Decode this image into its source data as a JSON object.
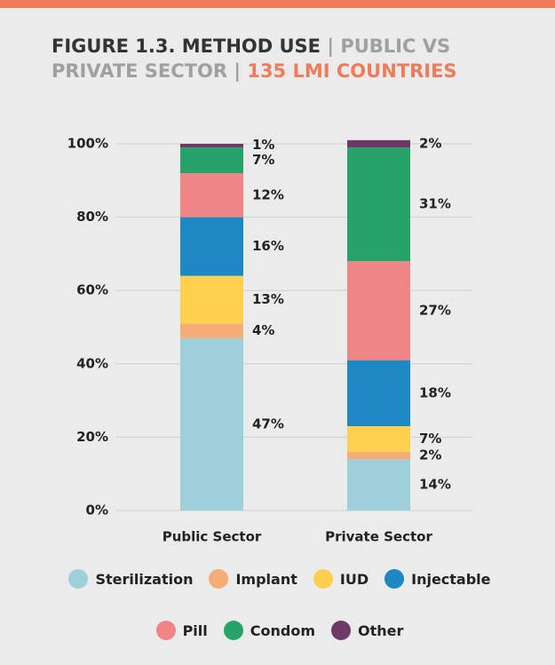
{
  "chart_data": {
    "type": "stacked_bar",
    "title": "FIGURE 1.3. METHOD USE",
    "subtitle": "| PUBLIC VS PRIVATE SECTOR |",
    "note": "135 LMI COUNTRIES",
    "categories": [
      "Public Sector",
      "Private Sector"
    ],
    "series": [
      {
        "name": "Sterilization",
        "color": "#9ecfdb",
        "values": [
          47,
          14
        ],
        "value_labels": [
          "47%",
          "14%"
        ]
      },
      {
        "name": "Implant",
        "color": "#f5ad78",
        "values": [
          4,
          2
        ],
        "value_labels": [
          "4%",
          "2%"
        ]
      },
      {
        "name": "IUD",
        "color": "#ffd04f",
        "values": [
          13,
          7
        ],
        "value_labels": [
          "13%",
          "7%"
        ]
      },
      {
        "name": "Injectable",
        "color": "#1e88c3",
        "values": [
          16,
          18
        ],
        "value_labels": [
          "16%",
          "18%"
        ]
      },
      {
        "name": "Pill",
        "color": "#f08585",
        "values": [
          12,
          27
        ],
        "value_labels": [
          "12%",
          "27%"
        ]
      },
      {
        "name": "Condom",
        "color": "#27a36a",
        "values": [
          7,
          31
        ],
        "value_labels": [
          "7%",
          "31%"
        ]
      },
      {
        "name": "Other",
        "color": "#6b3a66",
        "values": [
          1,
          2
        ],
        "value_labels": [
          "1%",
          "2%"
        ]
      }
    ],
    "ylim": [
      0,
      100
    ],
    "yticks": [
      {
        "value": 0,
        "label": "0%"
      },
      {
        "value": 20,
        "label": "20%"
      },
      {
        "value": 40,
        "label": "40%"
      },
      {
        "value": 60,
        "label": "60%"
      },
      {
        "value": 80,
        "label": "80%"
      },
      {
        "value": 100,
        "label": "100%"
      }
    ],
    "grid": true,
    "legend": "bottom"
  }
}
